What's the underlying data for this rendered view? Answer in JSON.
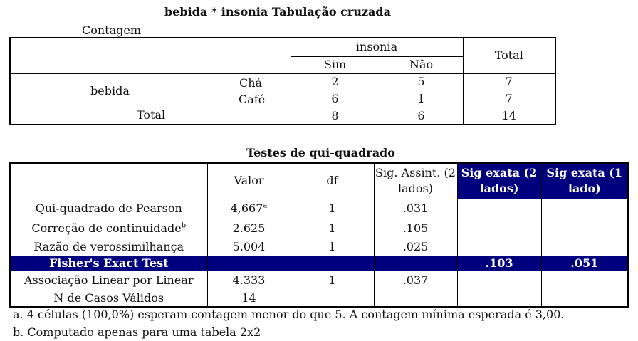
{
  "crosstab": {
    "title": "bebida * insonia Tabulação cruzada",
    "subtitle": "Contagem",
    "col_group": "insonia",
    "col_total": "Total",
    "cols": [
      "Sim",
      "Não"
    ],
    "row_group": "bebida",
    "rows": [
      {
        "label": "Chá",
        "values": [
          "2",
          "5",
          "7"
        ]
      },
      {
        "label": "Café",
        "values": [
          "6",
          "1",
          "7"
        ]
      }
    ],
    "total": {
      "label": "Total",
      "values": [
        "8",
        "6",
        "14"
      ]
    }
  },
  "chi": {
    "title": "Testes de qui-quadrado",
    "headers": [
      "Valor",
      "df",
      "Sig. Assint. (2 lados)",
      "Sig exata (2 lados)",
      "Sig exata (1 lado)"
    ],
    "rows": [
      {
        "label": "Qui-quadrado de Pearson",
        "valor": "4,667",
        "sup": "a",
        "df": "1",
        "sig": ".031"
      },
      {
        "label": "Correção de continuidade",
        "lsup": "b",
        "valor": "2.625",
        "df": "1",
        "sig": ".105"
      },
      {
        "label": "Razão de verossimilhança",
        "valor": "5.004",
        "df": "1",
        "sig": ".025"
      }
    ],
    "fisher": {
      "label": "Fisher's Exact Test",
      "exact2": ".103",
      "exact1": ".051"
    },
    "linear": {
      "label": "Associação Linear por Linear",
      "valor": "4.333",
      "df": "1",
      "sig": ".037"
    },
    "n": {
      "label": "N de Casos Válidos",
      "valor": "14"
    }
  },
  "footnotes": {
    "a": "a. 4 células (100,0%) esperam contagem menor do que 5. A contagem mínima esperada é 3,00.",
    "b": "b. Computado apenas para uma tabela 2x2"
  }
}
